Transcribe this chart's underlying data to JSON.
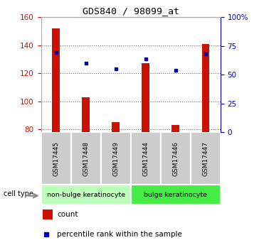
{
  "title": "GDS840 / 98099_at",
  "samples": [
    "GSM17445",
    "GSM17448",
    "GSM17449",
    "GSM17444",
    "GSM17446",
    "GSM17447"
  ],
  "counts": [
    152,
    103,
    85,
    127,
    83,
    141
  ],
  "percentile_ranks": [
    135,
    127,
    123,
    130,
    122,
    134
  ],
  "ylim_left": [
    78,
    160
  ],
  "ylim_right": [
    0,
    100
  ],
  "yticks_left": [
    80,
    100,
    120,
    140,
    160
  ],
  "yticks_right": [
    0,
    25,
    50,
    75,
    100
  ],
  "ytick_labels_right": [
    "0",
    "25",
    "50",
    "75",
    "100%"
  ],
  "bar_color": "#cc1100",
  "dot_color": "#0000bb",
  "cell_types": [
    {
      "label": "non-bulge keratinocyte",
      "color": "#bbffbb",
      "x_start": -0.5,
      "x_end": 2.5
    },
    {
      "label": "bulge keratinocyte",
      "color": "#44ee44",
      "x_start": 2.5,
      "x_end": 5.5
    }
  ],
  "cell_type_label": "cell type",
  "legend_count_label": "count",
  "legend_percentile_label": "percentile rank within the sample",
  "bar_width": 0.25,
  "xlim": [
    -0.5,
    5.5
  ]
}
